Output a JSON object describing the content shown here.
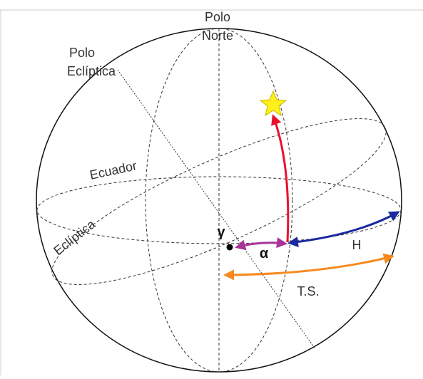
{
  "labels": {
    "north_pole": [
      "Polo",
      "Norte"
    ],
    "ecliptic_pole": [
      "Polo",
      "Eclíptica"
    ],
    "equator": "Ecuador",
    "ecliptic": "Eclíptica",
    "vernal_point": "γ",
    "right_ascension": "α",
    "hour_angle": "H",
    "sidereal_time": "T.S."
  }
}
